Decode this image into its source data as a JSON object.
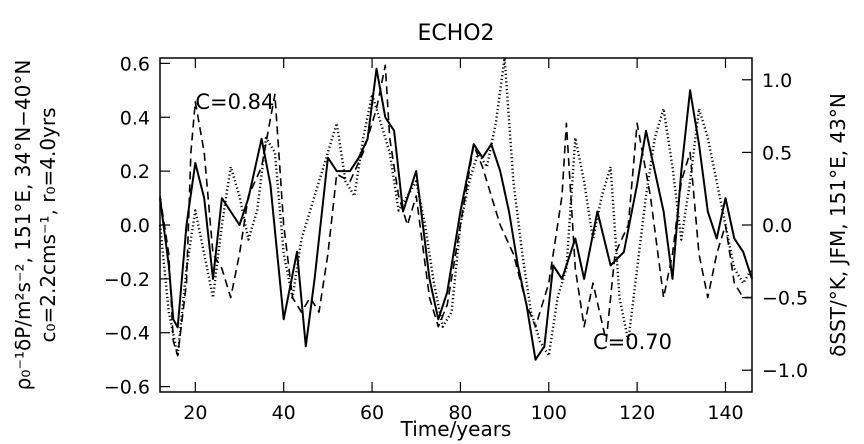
{
  "chart_data": {
    "type": "line",
    "title": "ECHO2",
    "xlabel": "Time/years",
    "ylabel_left_line1": "ρ₀⁻¹δP/m²s⁻², 151°E, 34°N−40°N",
    "ylabel_left_line2": "c₀=2.2cms⁻¹, r₀=4.0yrs",
    "ylabel_right": "δSST/°K, JFM, 151°E, 43°N",
    "xlim": [
      12,
      146
    ],
    "ylim_left": [
      -0.62,
      0.62
    ],
    "ylim_right": [
      -1.15,
      1.15
    ],
    "x_ticks": [
      20,
      40,
      60,
      80,
      100,
      120,
      140
    ],
    "x_tick_labels": [
      "20",
      "40",
      "60",
      "80",
      "100",
      "120",
      "140"
    ],
    "y_left_ticks": [
      -0.6,
      -0.4,
      -0.2,
      0.0,
      0.2,
      0.4,
      0.6
    ],
    "y_left_tick_labels": [
      "−0.6",
      "−0.4",
      "−0.2",
      "0.0",
      "0.2",
      "0.4",
      "0.6"
    ],
    "y_right_ticks": [
      -1.0,
      -0.5,
      0.0,
      0.5,
      1.0
    ],
    "y_right_tick_labels": [
      "−1.0",
      "−0.5",
      "0.0",
      "0.5",
      "1.0"
    ],
    "annotations": [
      {
        "text": "C=0.84",
        "x": 20,
        "y": 0.46
      },
      {
        "text": "C=0.70",
        "x": 110,
        "y": -0.43
      }
    ],
    "series": [
      {
        "style": "solid",
        "axis": "left",
        "x": [
          12,
          14,
          15,
          16,
          18,
          20,
          22,
          24,
          26,
          28,
          30,
          32,
          35,
          37,
          40,
          43,
          45,
          47,
          50,
          52,
          55,
          57,
          59,
          61,
          63,
          65,
          67,
          70,
          73,
          75,
          77,
          80,
          83,
          85,
          87,
          89,
          91,
          93,
          95,
          97,
          99,
          101,
          103,
          106,
          108,
          111,
          114,
          117,
          120,
          122,
          124,
          126,
          128,
          130,
          132,
          134,
          136,
          138,
          140,
          142,
          144,
          146
        ],
        "y": [
          0.1,
          -0.15,
          -0.35,
          -0.38,
          0.0,
          0.23,
          0.1,
          -0.2,
          0.1,
          0.05,
          0.0,
          0.1,
          0.32,
          0.15,
          -0.35,
          -0.1,
          -0.45,
          -0.2,
          0.25,
          0.2,
          0.2,
          0.25,
          0.32,
          0.58,
          0.4,
          0.35,
          0.05,
          0.2,
          -0.2,
          -0.35,
          -0.25,
          0.05,
          0.3,
          0.25,
          0.3,
          0.2,
          0.05,
          -0.15,
          -0.3,
          -0.5,
          -0.45,
          -0.15,
          -0.2,
          -0.05,
          -0.2,
          0.05,
          -0.15,
          -0.1,
          0.15,
          0.35,
          0.2,
          0.05,
          -0.2,
          0.2,
          0.5,
          0.3,
          0.05,
          -0.05,
          0.1,
          -0.05,
          -0.1,
          -0.2
        ]
      },
      {
        "style": "dashed",
        "axis": "right",
        "x": [
          12,
          14,
          15,
          16,
          18,
          19,
          20,
          22,
          24,
          26,
          28,
          30,
          32,
          35,
          38,
          40,
          42,
          44,
          46,
          48,
          50,
          52,
          55,
          58,
          61,
          63,
          64,
          66,
          68,
          70,
          73,
          75,
          77,
          80,
          83,
          85,
          87,
          89,
          92,
          95,
          97,
          100,
          103,
          104,
          106,
          108,
          110,
          113,
          115,
          118,
          120,
          123,
          126,
          128,
          130,
          132,
          134,
          136,
          138,
          140,
          142,
          144,
          146
        ],
        "y": [
          0.2,
          -0.2,
          -0.8,
          -0.9,
          -0.4,
          0.5,
          0.85,
          0.5,
          -0.2,
          -0.3,
          -0.5,
          -0.2,
          0.2,
          0.4,
          0.9,
          0.0,
          -0.5,
          -0.6,
          -0.5,
          -0.6,
          -0.2,
          0.35,
          0.3,
          0.5,
          0.8,
          1.1,
          0.6,
          0.2,
          0.0,
          0.2,
          -0.5,
          -0.7,
          -0.55,
          0.0,
          0.55,
          0.4,
          0.2,
          0.0,
          -0.2,
          -0.55,
          -0.7,
          -0.4,
          0.2,
          0.7,
          -0.3,
          -0.7,
          -0.4,
          -0.8,
          -0.2,
          0.0,
          0.7,
          0.2,
          -0.5,
          -0.2,
          0.3,
          0.5,
          -0.2,
          -0.5,
          -0.2,
          0.0,
          -0.4,
          -0.5,
          -0.5
        ]
      },
      {
        "style": "dotted",
        "axis": "right",
        "x": [
          12,
          14,
          16,
          18,
          20,
          22,
          24,
          26,
          28,
          30,
          32,
          34,
          36,
          38,
          40,
          42,
          44,
          46,
          48,
          50,
          52,
          54,
          56,
          58,
          60,
          62,
          64,
          66,
          68,
          70,
          72,
          74,
          76,
          78,
          80,
          82,
          84,
          86,
          88,
          90,
          92,
          94,
          96,
          98,
          100,
          102,
          104,
          106,
          108,
          110,
          112,
          114,
          116,
          118,
          120,
          122,
          124,
          126,
          128,
          130,
          132,
          134,
          136,
          138,
          140,
          142,
          144,
          146
        ],
        "y": [
          0.0,
          -0.6,
          -0.9,
          -0.3,
          0.1,
          -0.2,
          -0.5,
          0.0,
          0.4,
          0.2,
          -0.1,
          0.1,
          0.6,
          0.5,
          -0.2,
          -0.5,
          -0.1,
          0.1,
          0.3,
          0.5,
          0.7,
          0.3,
          0.2,
          0.6,
          0.9,
          0.7,
          0.5,
          0.1,
          0.2,
          0.3,
          0.0,
          -0.4,
          -0.7,
          -0.6,
          0.0,
          0.3,
          0.5,
          0.4,
          0.7,
          1.15,
          0.3,
          -0.2,
          -0.6,
          -0.8,
          -0.9,
          -0.5,
          -0.3,
          0.6,
          0.3,
          -0.1,
          0.2,
          0.4,
          -0.5,
          -0.8,
          -0.3,
          0.2,
          0.6,
          0.8,
          0.4,
          -0.1,
          0.3,
          0.8,
          0.6,
          0.3,
          0.0,
          -0.3,
          -0.4,
          -0.3
        ]
      }
    ]
  }
}
